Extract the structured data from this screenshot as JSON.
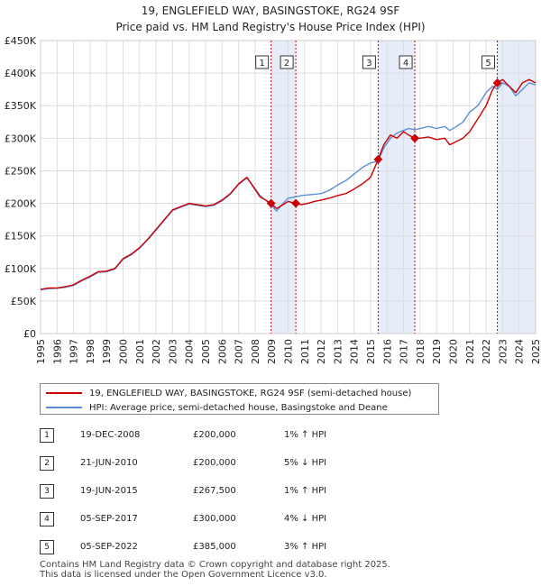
{
  "chart_data": {
    "type": "line",
    "title": "19, ENGLEFIELD WAY, BASINGSTOKE, RG24 9SF",
    "subtitle": "Price paid vs. HM Land Registry's House Price Index (HPI)",
    "xlim": [
      1995,
      2025
    ],
    "ylim": [
      0,
      450000
    ],
    "x_ticks": [
      "1995",
      "1996",
      "1997",
      "1998",
      "1999",
      "2000",
      "2001",
      "2002",
      "2003",
      "2004",
      "2005",
      "2006",
      "2007",
      "2008",
      "2009",
      "2010",
      "2011",
      "2012",
      "2013",
      "2014",
      "2015",
      "2016",
      "2017",
      "2018",
      "2019",
      "2020",
      "2021",
      "2022",
      "2023",
      "2024",
      "2025"
    ],
    "y_ticks": [
      {
        "value": 0,
        "label": "£0"
      },
      {
        "value": 50000,
        "label": "£50K"
      },
      {
        "value": 100000,
        "label": "£100K"
      },
      {
        "value": 150000,
        "label": "£150K"
      },
      {
        "value": 200000,
        "label": "£200K"
      },
      {
        "value": 250000,
        "label": "£250K"
      },
      {
        "value": 300000,
        "label": "£300K"
      },
      {
        "value": 350000,
        "label": "£350K"
      },
      {
        "value": 400000,
        "label": "£400K"
      },
      {
        "value": 450000,
        "label": "£450K"
      }
    ],
    "grid": true,
    "legend_position": "below",
    "series": [
      {
        "name": "19, ENGLEFIELD WAY, BASINGSTOKE, RG24 9SF (semi-detached house)",
        "color": "#cc0000",
        "x": [
          1995.0,
          1995.5,
          1996.0,
          1996.5,
          1997.0,
          1997.5,
          1998.0,
          1998.5,
          1999.0,
          1999.5,
          2000.0,
          2000.5,
          2001.0,
          2001.5,
          2002.0,
          2002.5,
          2003.0,
          2003.5,
          2004.0,
          2004.5,
          2005.0,
          2005.5,
          2006.0,
          2006.5,
          2007.0,
          2007.5,
          2007.9,
          2008.3,
          2008.97,
          2009.3,
          2009.7,
          2010.0,
          2010.47,
          2010.8,
          2011.2,
          2011.6,
          2012.0,
          2012.5,
          2013.0,
          2013.5,
          2014.0,
          2014.5,
          2015.0,
          2015.46,
          2015.8,
          2016.2,
          2016.6,
          2017.0,
          2017.3,
          2017.68,
          2018.0,
          2018.5,
          2019.0,
          2019.5,
          2019.8,
          2020.2,
          2020.6,
          2021.0,
          2021.5,
          2022.0,
          2022.4,
          2022.68,
          2023.0,
          2023.4,
          2023.8,
          2024.2,
          2024.6,
          2025.0
        ],
        "y": [
          68000,
          70000,
          70000,
          72000,
          75000,
          82000,
          88000,
          95000,
          96000,
          100000,
          115000,
          122000,
          132000,
          145000,
          160000,
          175000,
          190000,
          195000,
          200000,
          198000,
          196000,
          198000,
          205000,
          215000,
          230000,
          240000,
          225000,
          210000,
          200000,
          192000,
          198000,
          203000,
          200000,
          198000,
          200000,
          203000,
          205000,
          208000,
          212000,
          215000,
          222000,
          230000,
          240000,
          267500,
          290000,
          305000,
          300000,
          310000,
          305000,
          300000,
          300000,
          302000,
          298000,
          300000,
          290000,
          295000,
          300000,
          310000,
          330000,
          350000,
          375000,
          385000,
          390000,
          380000,
          370000,
          385000,
          390000,
          385000
        ]
      },
      {
        "name": "HPI: Average price, semi-detached house, Basingstoke and Deane",
        "color": "#5b8ed6",
        "x": [
          1995.0,
          1995.5,
          1996.0,
          1996.5,
          1997.0,
          1997.5,
          1998.0,
          1998.5,
          1999.0,
          1999.5,
          2000.0,
          2000.5,
          2001.0,
          2001.5,
          2002.0,
          2002.5,
          2003.0,
          2003.5,
          2004.0,
          2004.5,
          2005.0,
          2005.5,
          2006.0,
          2006.5,
          2007.0,
          2007.5,
          2007.9,
          2008.3,
          2008.97,
          2009.3,
          2009.7,
          2010.0,
          2010.47,
          2010.8,
          2011.2,
          2011.6,
          2012.0,
          2012.5,
          2013.0,
          2013.5,
          2014.0,
          2014.5,
          2015.0,
          2015.46,
          2015.8,
          2016.2,
          2016.6,
          2017.0,
          2017.3,
          2017.68,
          2018.0,
          2018.5,
          2019.0,
          2019.5,
          2019.8,
          2020.2,
          2020.6,
          2021.0,
          2021.5,
          2022.0,
          2022.4,
          2022.68,
          2023.0,
          2023.4,
          2023.8,
          2024.2,
          2024.6,
          2025.0
        ],
        "y": [
          67000,
          69000,
          69500,
          71000,
          74000,
          81000,
          87000,
          94000,
          95000,
          99000,
          114000,
          121000,
          131000,
          144000,
          159000,
          174000,
          189000,
          194000,
          199000,
          197000,
          195000,
          197000,
          204000,
          214000,
          229000,
          239000,
          226000,
          212000,
          198000,
          188000,
          200000,
          208000,
          210000,
          212000,
          213000,
          214000,
          215000,
          220000,
          228000,
          235000,
          245000,
          255000,
          262000,
          265000,
          285000,
          300000,
          308000,
          312000,
          315000,
          313000,
          315000,
          318000,
          315000,
          318000,
          312000,
          318000,
          325000,
          340000,
          350000,
          370000,
          380000,
          375000,
          385000,
          380000,
          365000,
          375000,
          385000,
          382000
        ]
      }
    ],
    "sales": [
      {
        "num": "1",
        "x": 2008.97,
        "y": 200000,
        "date": "19-DEC-2008",
        "price": "£200,000",
        "hpi": "1% ↑ HPI"
      },
      {
        "num": "2",
        "x": 2010.47,
        "y": 200000,
        "date": "21-JUN-2010",
        "price": "£200,000",
        "hpi": "5% ↓ HPI"
      },
      {
        "num": "3",
        "x": 2015.46,
        "y": 267500,
        "date": "19-JUN-2015",
        "price": "£267,500",
        "hpi": "1% ↑ HPI"
      },
      {
        "num": "4",
        "x": 2017.68,
        "y": 300000,
        "date": "05-SEP-2017",
        "price": "£300,000",
        "hpi": "4% ↓ HPI"
      },
      {
        "num": "5",
        "x": 2022.68,
        "y": 385000,
        "date": "05-SEP-2022",
        "price": "£385,000",
        "hpi": "3% ↑ HPI"
      }
    ],
    "shaded_periods": [
      [
        2008.97,
        2010.47
      ],
      [
        2015.46,
        2017.68
      ],
      [
        2022.68,
        2025.0
      ]
    ],
    "colors": {
      "grid": "#dddddd",
      "shade": "#e6ecf8",
      "vline": "#cc0000",
      "background": "#ffffff"
    }
  },
  "footer": {
    "line1": "Contains HM Land Registry data © Crown copyright and database right 2025.",
    "line2": "This data is licensed under the Open Government Licence v3.0."
  }
}
